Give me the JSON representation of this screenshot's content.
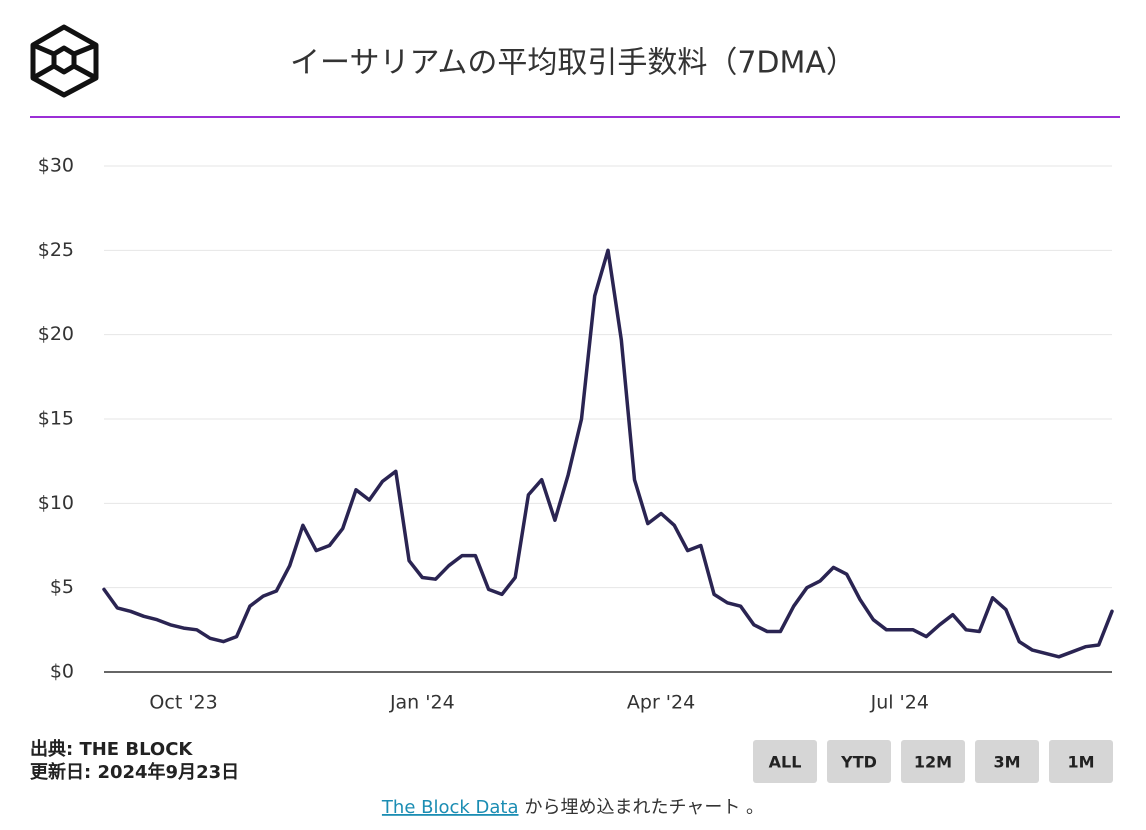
{
  "chart_data": {
    "type": "line",
    "title": "イーサリアムの平均取引手数料（7DMA）",
    "categories": [
      null,
      null,
      null,
      null,
      null,
      null,
      "Oct '23",
      null,
      null,
      null,
      null,
      null,
      null,
      null,
      null,
      null,
      null,
      null,
      null,
      null,
      null,
      null,
      null,
      null,
      "Jan '24",
      null,
      null,
      null,
      null,
      null,
      null,
      null,
      null,
      null,
      null,
      null,
      null,
      null,
      null,
      null,
      null,
      null,
      "Apr '24",
      null,
      null,
      null,
      null,
      null,
      null,
      null,
      null,
      null,
      null,
      null,
      null,
      null,
      null,
      null,
      null,
      null,
      "Jul '24",
      null,
      null,
      null,
      null,
      null,
      null,
      null,
      null,
      null,
      null,
      null,
      null,
      null,
      null,
      null,
      null
    ],
    "values": [
      4.9,
      3.8,
      3.6,
      3.3,
      3.1,
      2.8,
      2.6,
      2.5,
      2.0,
      1.8,
      2.1,
      3.9,
      4.5,
      4.8,
      6.3,
      8.7,
      7.2,
      7.5,
      8.5,
      10.8,
      10.2,
      11.3,
      11.9,
      6.6,
      5.6,
      5.5,
      6.3,
      6.9,
      6.9,
      4.9,
      4.6,
      5.6,
      10.5,
      11.4,
      9.0,
      11.7,
      15.0,
      22.3,
      25.0,
      19.7,
      11.4,
      8.8,
      9.4,
      8.7,
      7.2,
      7.5,
      4.6,
      4.1,
      3.9,
      2.8,
      2.4,
      2.4,
      3.9,
      5.0,
      5.4,
      6.2,
      5.8,
      4.3,
      3.1,
      2.5,
      2.5,
      2.5,
      2.1,
      2.8,
      3.4,
      2.5,
      2.4,
      4.4,
      3.7,
      1.8,
      1.3,
      1.1,
      0.9,
      1.2,
      1.5,
      1.6,
      3.6
    ],
    "color": "#2a2452",
    "ylim": [
      0,
      30
    ],
    "yticks": [
      {
        "value": 0,
        "label": "$0"
      },
      {
        "value": 5,
        "label": "$5"
      },
      {
        "value": 10,
        "label": "$10"
      },
      {
        "value": 15,
        "label": "$15"
      },
      {
        "value": 20,
        "label": "$20"
      },
      {
        "value": 25,
        "label": "$25"
      },
      {
        "value": 30,
        "label": "$30"
      }
    ],
    "grid": true
  },
  "source": "出典: THE BLOCK",
  "updated": "更新日: 2024年9月23日",
  "buttons": [
    "ALL",
    "YTD",
    "12M",
    "3M",
    "1M"
  ],
  "embed": {
    "link": "The Block Data",
    "text": "から埋め込まれたチャート 。"
  }
}
